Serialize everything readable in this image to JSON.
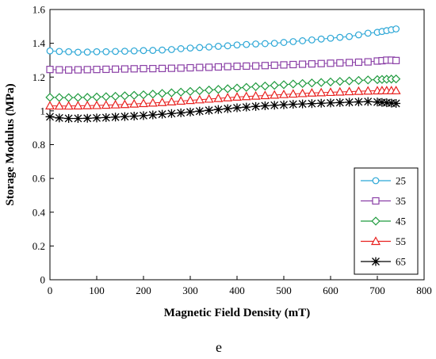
{
  "chart_data": {
    "type": "line",
    "xlabel": "Magnetic Field Density (mT)",
    "ylabel": "Storage Modulus (MPa)",
    "xlim": [
      0,
      800
    ],
    "ylim": [
      0,
      1.6
    ],
    "xticks": [
      0,
      100,
      200,
      300,
      400,
      500,
      600,
      700,
      800
    ],
    "yticks": [
      0,
      0.2,
      0.4,
      0.6,
      0.8,
      1,
      1.2,
      1.4,
      1.6
    ],
    "grid": false,
    "legend_position": "bottom-right",
    "caption": "e",
    "x": [
      0,
      20,
      40,
      60,
      80,
      100,
      120,
      140,
      160,
      180,
      200,
      220,
      240,
      260,
      280,
      300,
      320,
      340,
      360,
      380,
      400,
      420,
      440,
      460,
      480,
      500,
      520,
      540,
      560,
      580,
      600,
      620,
      640,
      660,
      680,
      700,
      710,
      720,
      730,
      740
    ],
    "series": [
      {
        "name": "25",
        "color": "#2aa6d6",
        "marker": "circle",
        "values": [
          1.355,
          1.352,
          1.35,
          1.347,
          1.348,
          1.35,
          1.35,
          1.352,
          1.353,
          1.355,
          1.357,
          1.358,
          1.36,
          1.363,
          1.368,
          1.372,
          1.375,
          1.378,
          1.382,
          1.385,
          1.39,
          1.393,
          1.396,
          1.398,
          1.4,
          1.405,
          1.41,
          1.415,
          1.42,
          1.425,
          1.43,
          1.435,
          1.44,
          1.45,
          1.46,
          1.465,
          1.47,
          1.475,
          1.48,
          1.485
        ]
      },
      {
        "name": "35",
        "color": "#8a3fa6",
        "marker": "square",
        "values": [
          1.245,
          1.243,
          1.242,
          1.243,
          1.244,
          1.245,
          1.246,
          1.247,
          1.248,
          1.249,
          1.25,
          1.25,
          1.251,
          1.252,
          1.253,
          1.255,
          1.257,
          1.258,
          1.26,
          1.262,
          1.264,
          1.265,
          1.266,
          1.268,
          1.27,
          1.272,
          1.274,
          1.276,
          1.278,
          1.28,
          1.282,
          1.284,
          1.286,
          1.288,
          1.29,
          1.295,
          1.297,
          1.3,
          1.3,
          1.298
        ]
      },
      {
        "name": "45",
        "color": "#1f9a3e",
        "marker": "diamond",
        "values": [
          1.08,
          1.079,
          1.078,
          1.079,
          1.08,
          1.082,
          1.084,
          1.086,
          1.089,
          1.092,
          1.095,
          1.099,
          1.103,
          1.107,
          1.111,
          1.115,
          1.119,
          1.123,
          1.127,
          1.131,
          1.135,
          1.139,
          1.143,
          1.147,
          1.151,
          1.155,
          1.159,
          1.162,
          1.165,
          1.168,
          1.171,
          1.174,
          1.177,
          1.18,
          1.183,
          1.185,
          1.186,
          1.187,
          1.188,
          1.189
        ]
      },
      {
        "name": "55",
        "color": "#e8201e",
        "marker": "triangle",
        "values": [
          1.03,
          1.029,
          1.029,
          1.03,
          1.031,
          1.032,
          1.034,
          1.036,
          1.038,
          1.041,
          1.044,
          1.047,
          1.05,
          1.054,
          1.058,
          1.062,
          1.066,
          1.07,
          1.074,
          1.078,
          1.082,
          1.085,
          1.088,
          1.091,
          1.094,
          1.097,
          1.1,
          1.103,
          1.106,
          1.108,
          1.11,
          1.112,
          1.114,
          1.116,
          1.118,
          1.119,
          1.12,
          1.12,
          1.12,
          1.12
        ]
      },
      {
        "name": "65",
        "color": "#000000",
        "marker": "star",
        "values": [
          0.965,
          0.958,
          0.955,
          0.955,
          0.956,
          0.958,
          0.96,
          0.963,
          0.966,
          0.969,
          0.972,
          0.976,
          0.98,
          0.984,
          0.988,
          0.993,
          0.998,
          1.003,
          1.008,
          1.013,
          1.018,
          1.022,
          1.026,
          1.03,
          1.033,
          1.036,
          1.039,
          1.041,
          1.043,
          1.045,
          1.047,
          1.049,
          1.051,
          1.053,
          1.055,
          1.052,
          1.05,
          1.048,
          1.046,
          1.044
        ]
      }
    ]
  }
}
